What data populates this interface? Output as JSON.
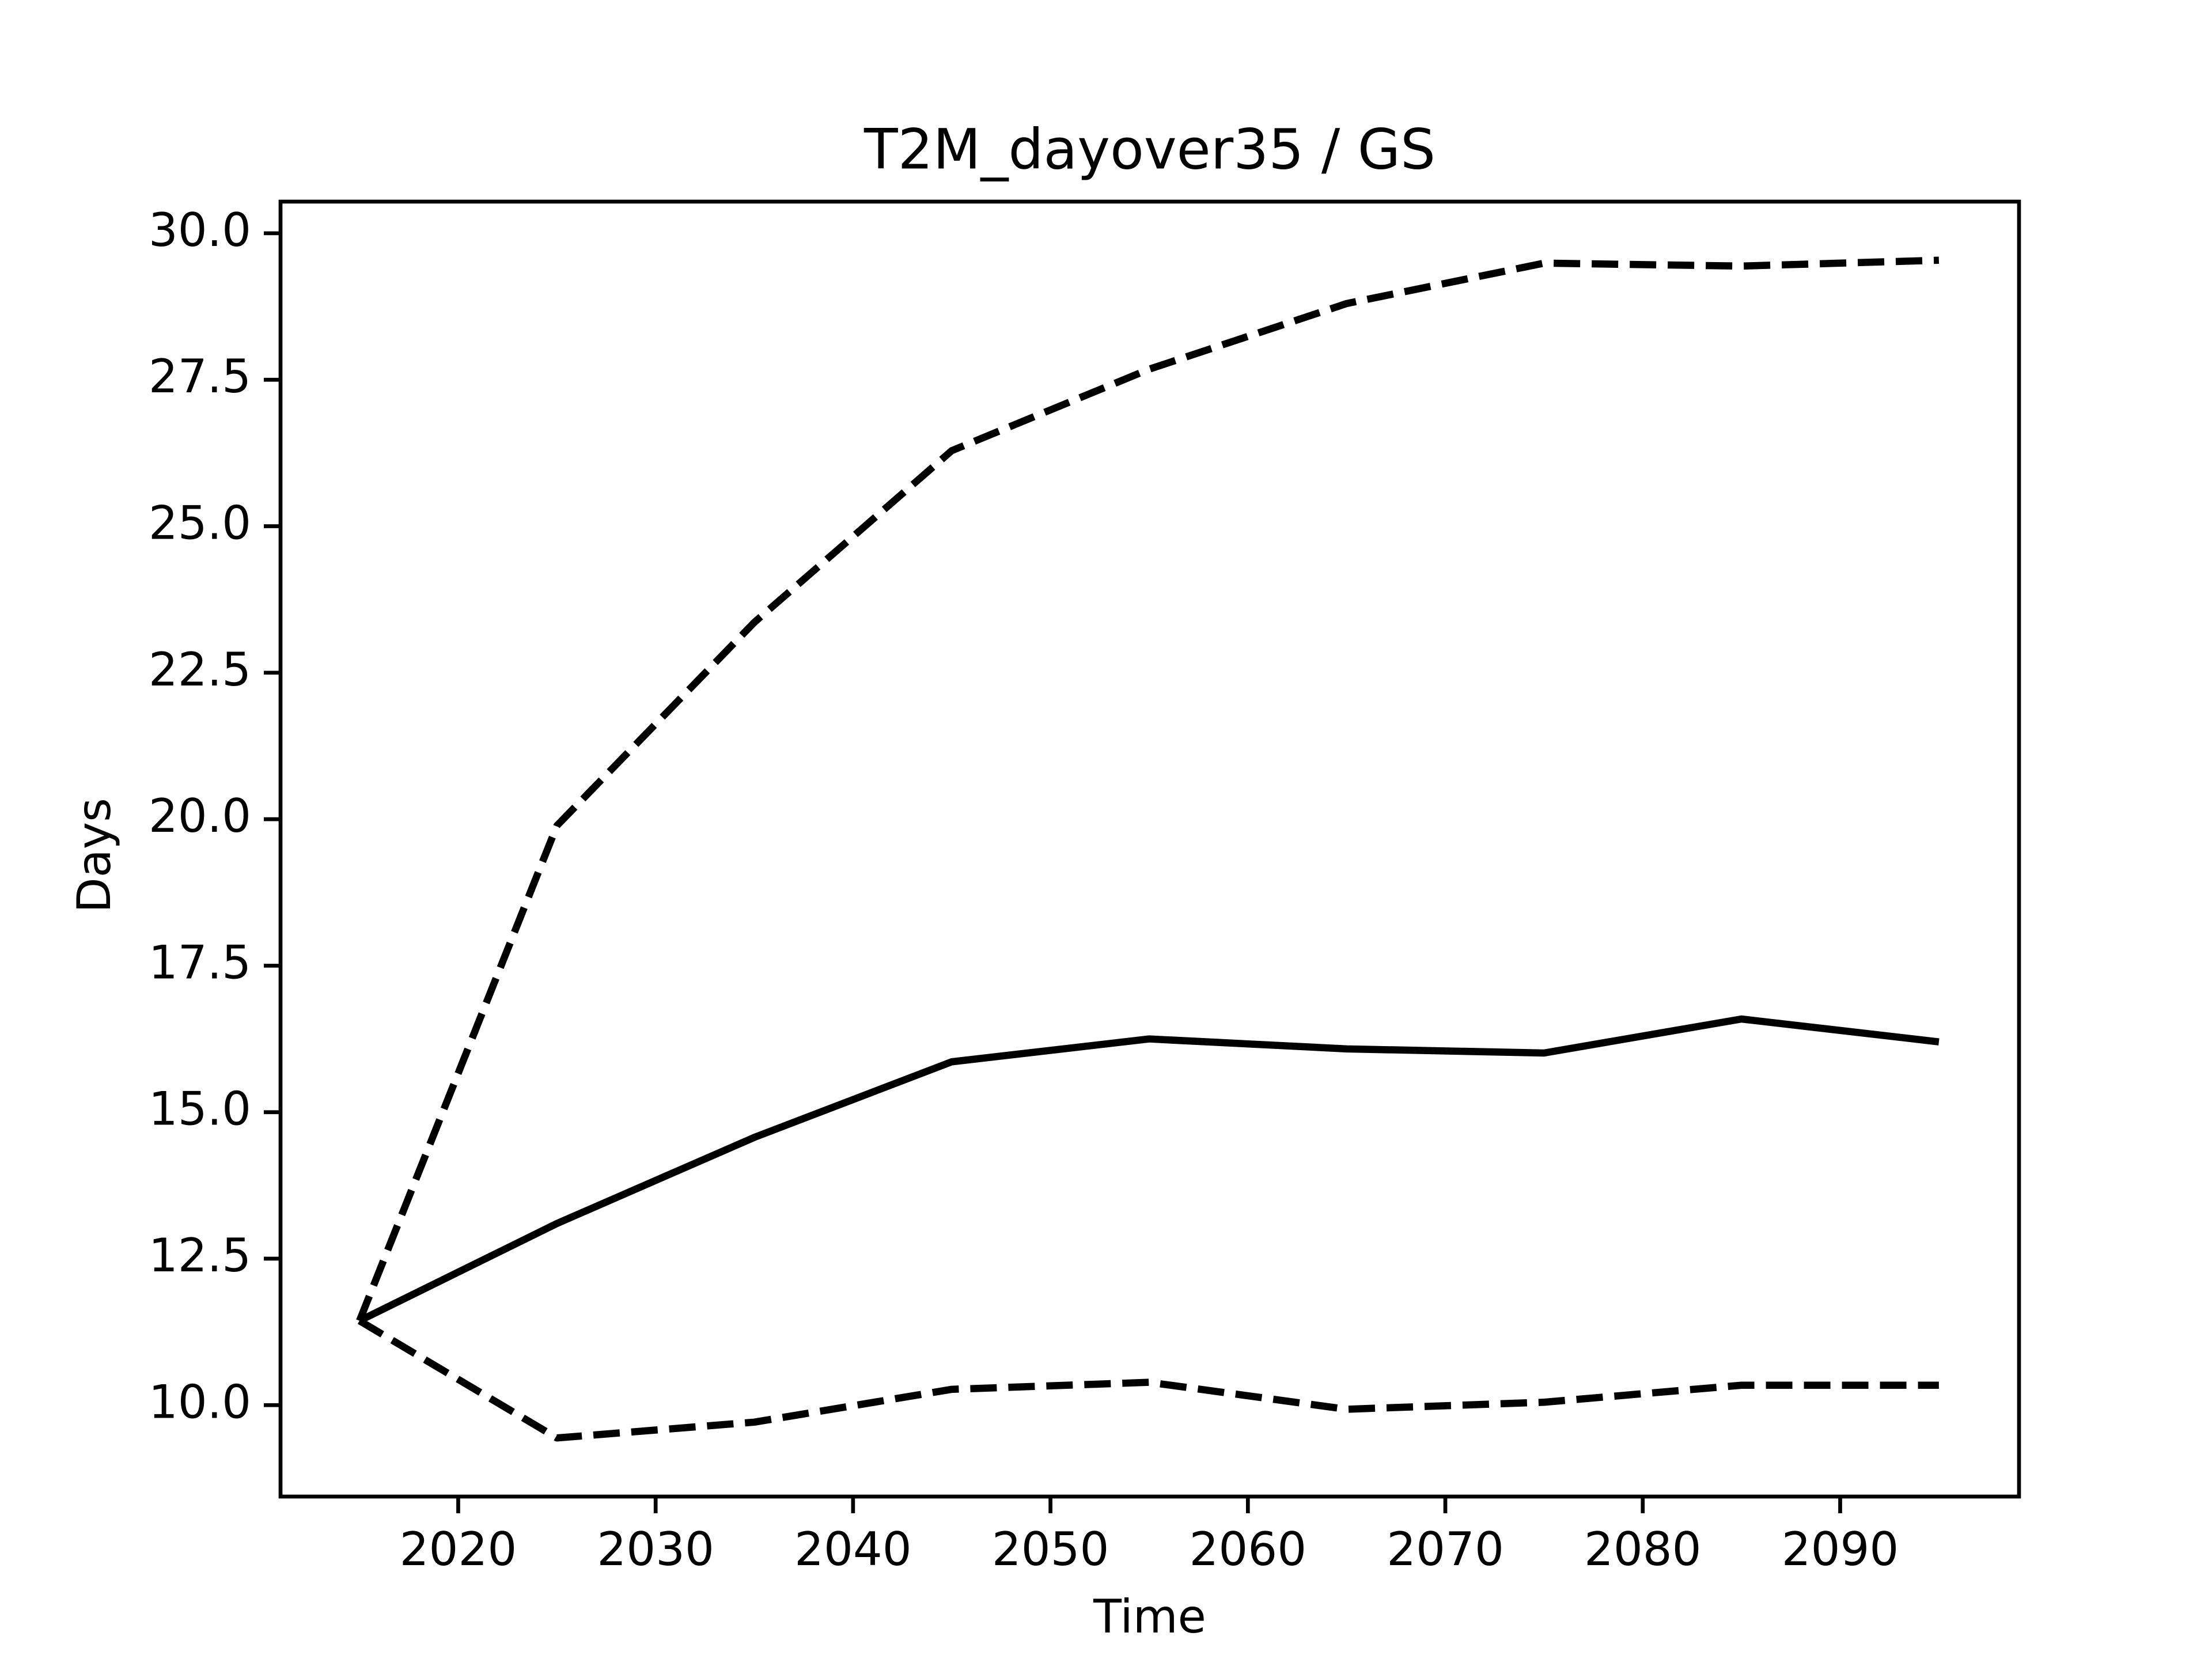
{
  "chart_data": {
    "type": "line",
    "title": "T2M_dayover35 / GS",
    "x_label": "Time",
    "y_label": "Days",
    "x": [
      2015,
      2025,
      2035,
      2045,
      2055,
      2065,
      2075,
      2085,
      2095
    ],
    "series": [
      {
        "color": "#000000",
        "linestyle": "dashed",
        "values": [
          11.44,
          19.89,
          23.36,
          26.29,
          27.68,
          28.8,
          29.49,
          29.44,
          29.54
        ]
      },
      {
        "color": "#000000",
        "linestyle": "solid",
        "values": [
          11.44,
          13.1,
          14.57,
          15.86,
          16.25,
          16.08,
          16.01,
          16.59,
          16.2
        ]
      },
      {
        "color": "#000000",
        "linestyle": "dashed",
        "values": [
          11.44,
          9.44,
          9.71,
          10.27,
          10.39,
          9.93,
          10.05,
          10.34,
          10.34
        ]
      }
    ],
    "xlim": [
      2011.0,
      2099.06
    ],
    "ylim": [
      8.44,
      30.54
    ],
    "xticks": [
      2020,
      2030,
      2040,
      2050,
      2060,
      2070,
      2080,
      2090
    ],
    "yticks": [
      {
        "value": 10,
        "label": "10.0"
      },
      12.5,
      {
        "value": 15,
        "label": "15.0"
      },
      17.5,
      {
        "value": 20,
        "label": "20.0"
      },
      22.5,
      {
        "value": 25,
        "label": "25.0"
      },
      27.5,
      {
        "value": 30,
        "label": "30.0"
      }
    ],
    "grid": false
  }
}
